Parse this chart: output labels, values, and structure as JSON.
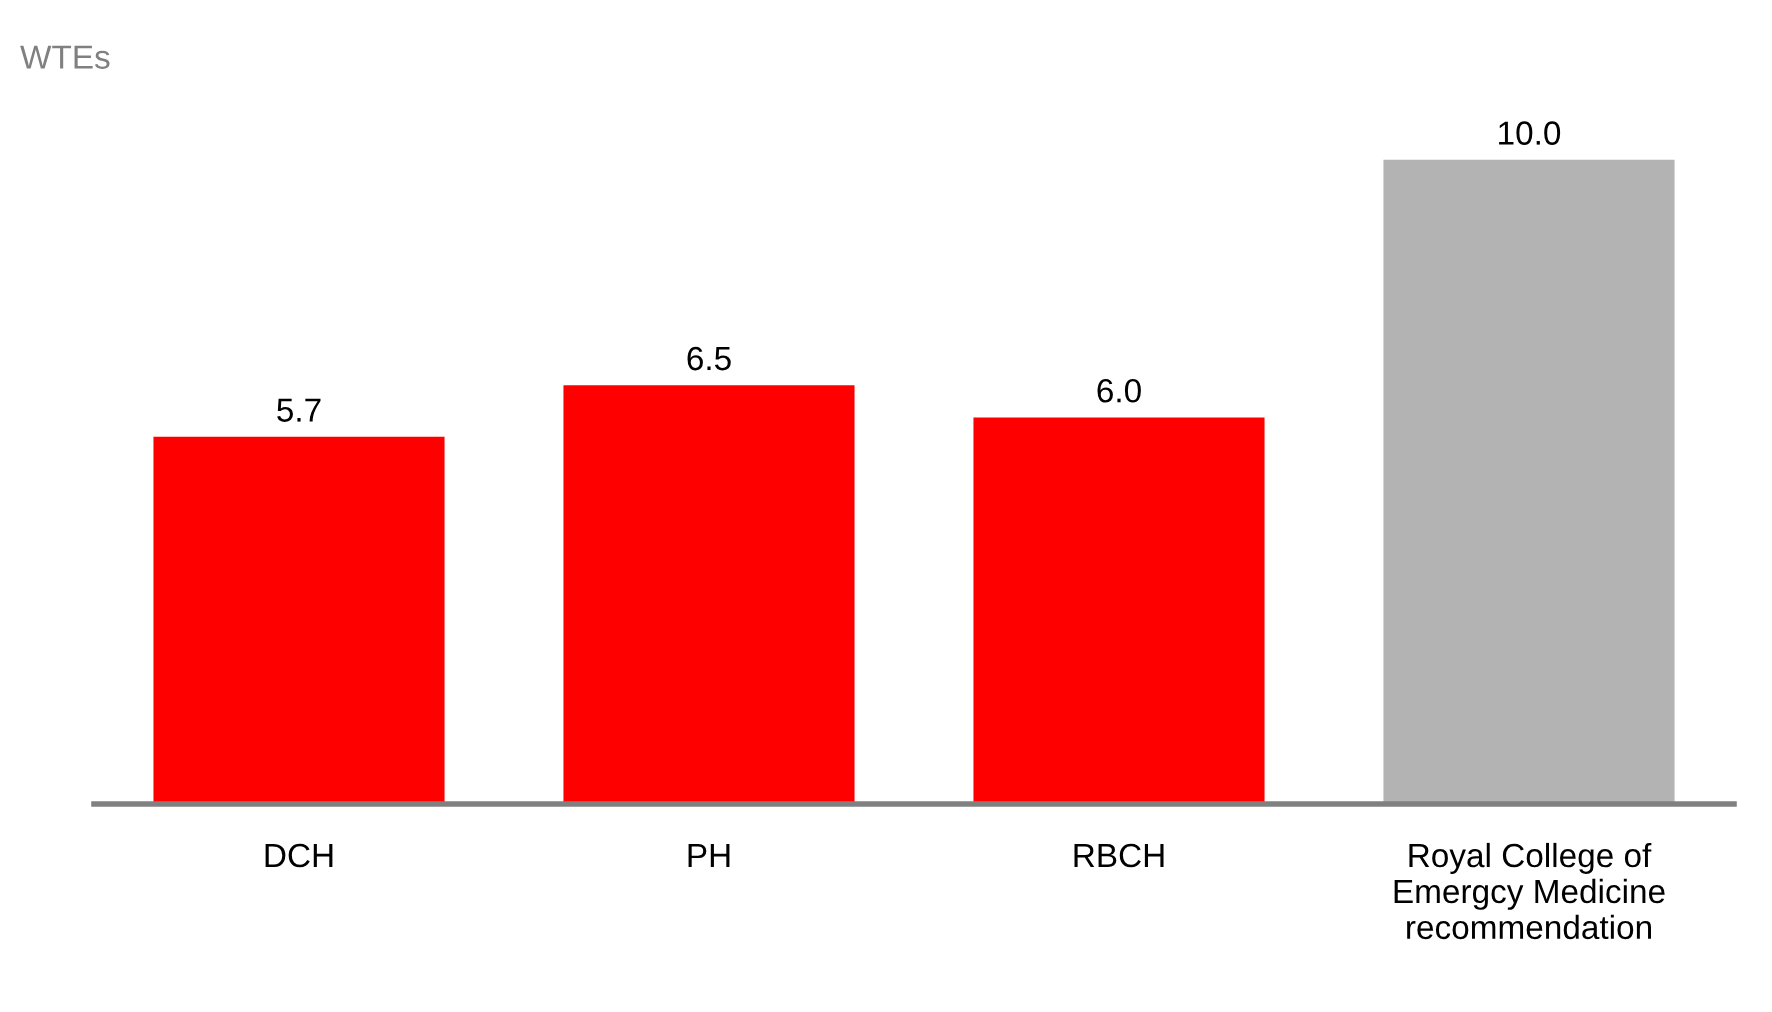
{
  "chart_data": {
    "type": "bar",
    "ylabel": "WTEs",
    "categories": [
      "DCH",
      "PH",
      "RBCH",
      "Royal College of\nEmergcy Medicine\nrecommendation"
    ],
    "values": [
      5.7,
      6.5,
      6.0,
      10.0
    ],
    "colors": [
      "#ff0000",
      "#ff0000",
      "#ff0000",
      "#b3b3b3"
    ],
    "value_labels": [
      "5.7",
      "6.5",
      "6.0",
      "10.0"
    ],
    "grid": false,
    "legend": false
  }
}
